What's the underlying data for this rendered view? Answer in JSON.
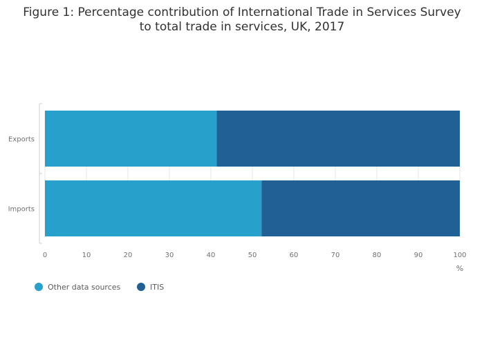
{
  "chart_data": {
    "type": "bar",
    "orientation": "horizontal",
    "stacked": true,
    "title_lines": [
      "Figure 1: Percentage contribution of International Trade in Services Survey",
      "to total trade in services, UK, 2017"
    ],
    "categories": [
      "Exports",
      "Imports"
    ],
    "series": [
      {
        "name": "Other data sources",
        "values": [
          41.4,
          52.2
        ],
        "color": "#27a0cc"
      },
      {
        "name": "ITIS",
        "values": [
          58.6,
          47.8
        ],
        "color": "#206095"
      }
    ],
    "xlim": [
      0,
      100
    ],
    "xticks": [
      "0",
      "10",
      "20",
      "30",
      "40",
      "50",
      "60",
      "70",
      "80",
      "90",
      "100"
    ],
    "xlabel": "%",
    "ylabel": "",
    "grid": true,
    "legend_position": "bottom-left"
  }
}
